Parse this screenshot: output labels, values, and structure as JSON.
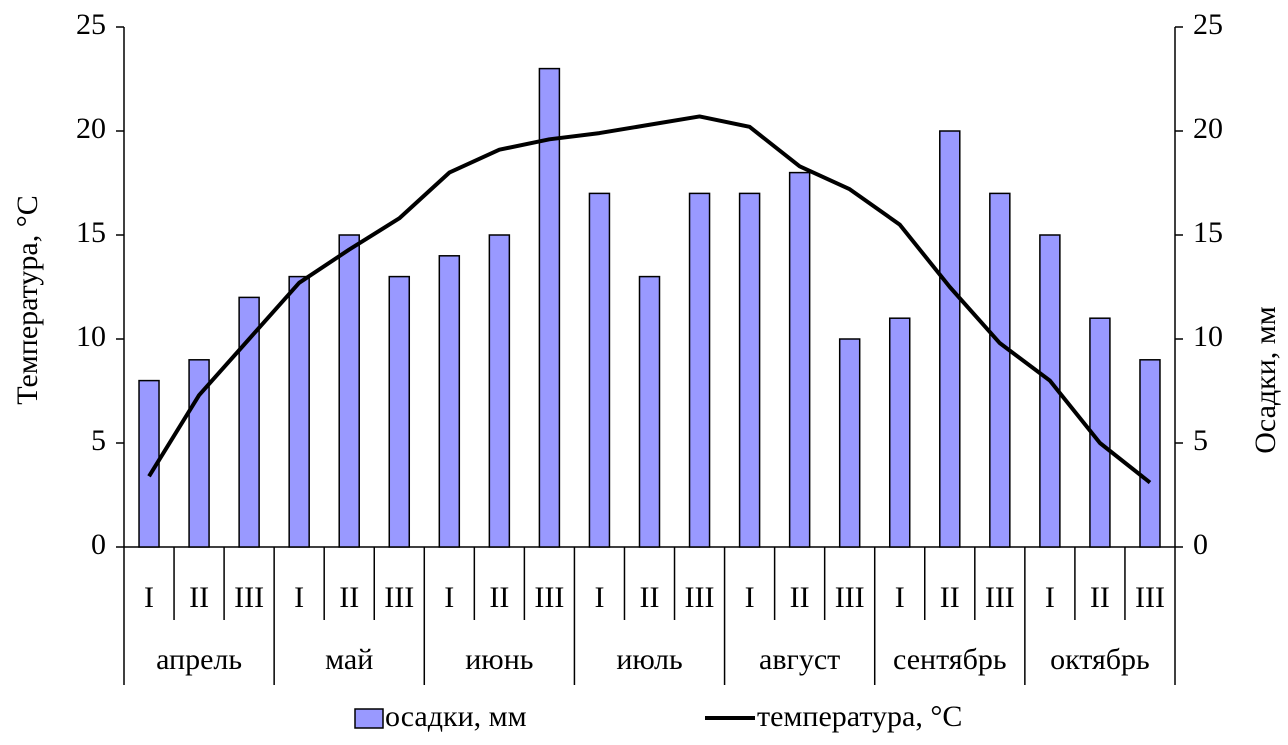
{
  "chart_data": {
    "type": "bar_line",
    "categories": [
      "I",
      "II",
      "III",
      "I",
      "II",
      "III",
      "I",
      "II",
      "III",
      "I",
      "II",
      "III",
      "I",
      "II",
      "III",
      "I",
      "II",
      "III",
      "I",
      "II",
      "III"
    ],
    "groups": [
      "апрель",
      "май",
      "июнь",
      "июль",
      "август",
      "сентябрь",
      "октябрь"
    ],
    "series": [
      {
        "name": "осадки, мм",
        "type": "bar",
        "axis": "y2",
        "color": "#9999ff",
        "values": [
          8,
          9,
          12,
          13,
          15,
          13,
          14,
          15,
          23,
          17,
          13,
          17,
          17,
          18,
          10,
          11,
          20,
          17,
          15,
          11,
          9
        ]
      },
      {
        "name": "температура, °C",
        "type": "line",
        "axis": "y",
        "color": "#000000",
        "values": [
          3.4,
          7.3,
          10,
          12.7,
          14.3,
          15.8,
          18,
          19.1,
          19.6,
          19.9,
          20.3,
          20.7,
          20.2,
          18.3,
          17.2,
          15.5,
          12.5,
          9.8,
          8,
          5,
          3.1
        ]
      }
    ],
    "ylabel": "Температура, °C",
    "y2label": "Осадки, мм",
    "ylim": [
      0,
      25
    ],
    "yticks": [
      0,
      5,
      10,
      15,
      20,
      25
    ],
    "y2lim": [
      0,
      25
    ],
    "y2ticks": [
      0,
      5,
      10,
      15,
      20,
      25
    ]
  }
}
